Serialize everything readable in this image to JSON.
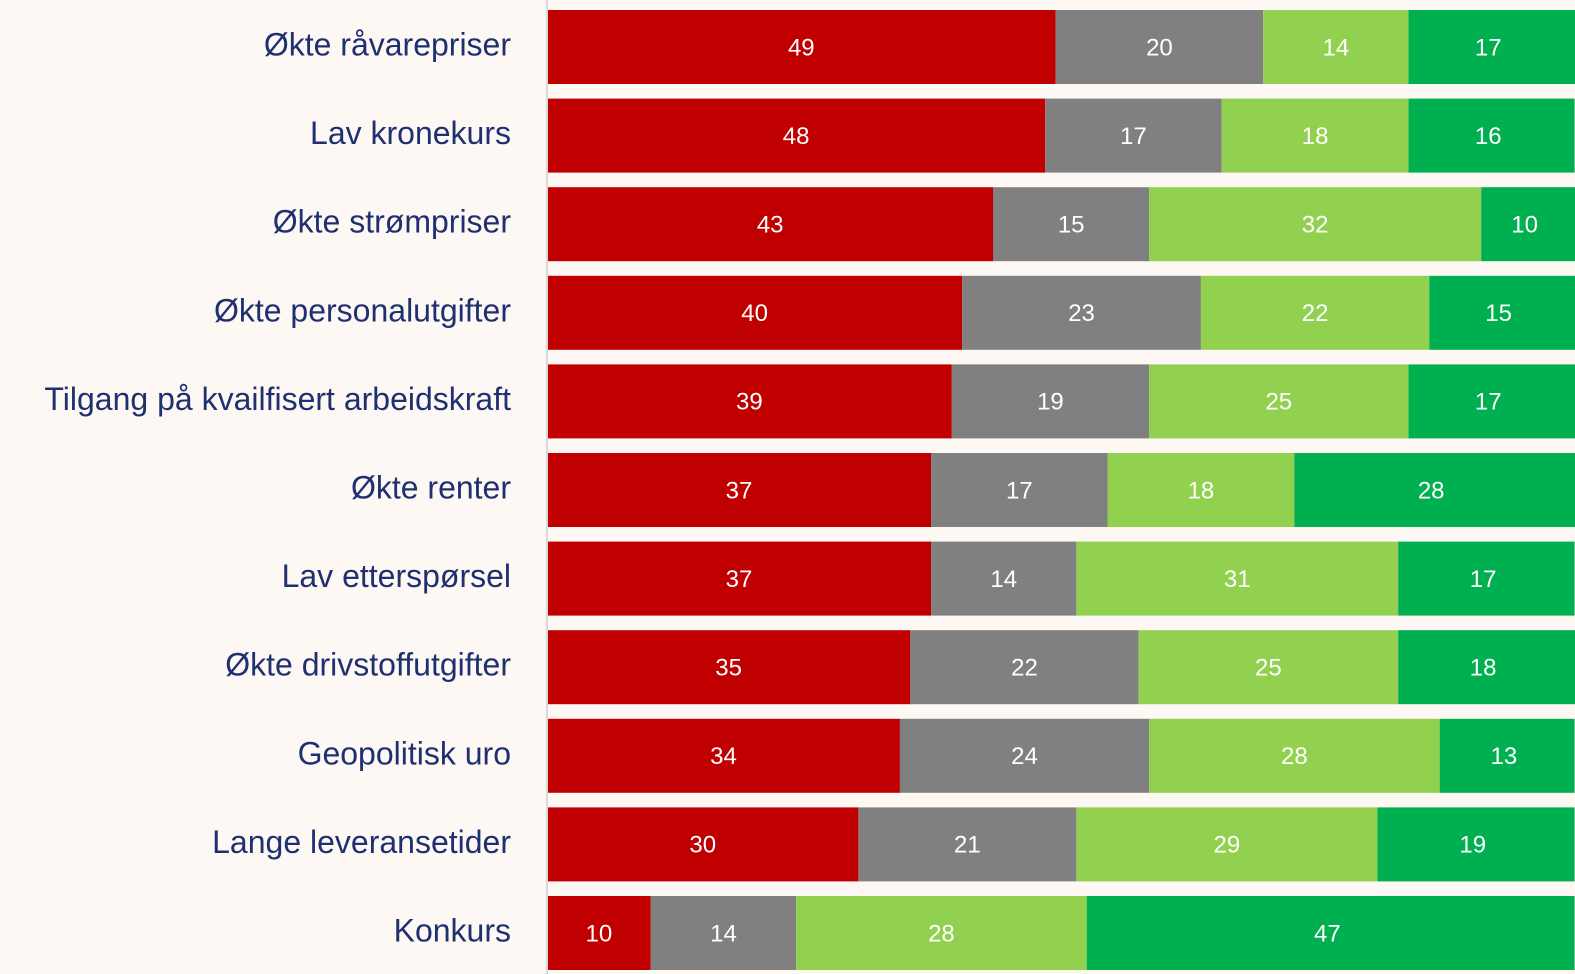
{
  "chart_data": {
    "type": "stacked_bar_horizontal",
    "categories": [
      "Økte råvarepriser",
      "Lav kronekurs",
      "Økte strømpriser",
      "Økte personalutgifter",
      "Tilgang på kvailfisert arbeidskraft",
      "Økte renter",
      "Lav etterspørsel",
      "Økte drivstoffutgifter",
      "Geopolitisk uro",
      "Lange leveransetider",
      "Konkurs"
    ],
    "series": [
      {
        "color": "#c00000",
        "values": [
          49,
          48,
          43,
          40,
          39,
          37,
          37,
          35,
          34,
          30,
          10
        ]
      },
      {
        "color": "#808080",
        "values": [
          20,
          17,
          15,
          23,
          19,
          17,
          14,
          22,
          24,
          21,
          14
        ]
      },
      {
        "color": "#92d050",
        "values": [
          14,
          18,
          32,
          22,
          25,
          18,
          31,
          25,
          28,
          29,
          28
        ]
      },
      {
        "color": "#00b050",
        "values": [
          17,
          16,
          10,
          15,
          17,
          28,
          17,
          18,
          13,
          19,
          47
        ]
      }
    ],
    "xlim": [
      0,
      100
    ]
  }
}
